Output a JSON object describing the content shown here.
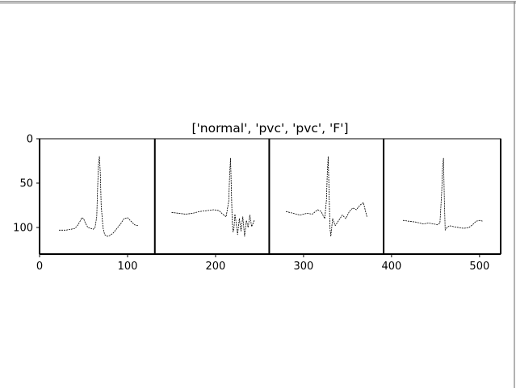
{
  "chart_data": {
    "type": "line",
    "title": "['normal', 'pvc', 'pvc', 'F']",
    "xlabel": "",
    "ylabel": "",
    "xlim": [
      0,
      524
    ],
    "ylim": [
      130,
      0
    ],
    "x_ticks": [
      0,
      100,
      200,
      300,
      400,
      500
    ],
    "y_ticks": [
      0,
      50,
      100
    ],
    "x_tick_labels": [
      "0",
      "100",
      "200",
      "300",
      "400",
      "500"
    ],
    "y_tick_labels": [
      "0",
      "50",
      "100"
    ],
    "grid": false,
    "panel_separators_x": [
      131,
      261,
      391
    ],
    "colors": {
      "trace": "#000000",
      "separator": "#000000",
      "background": "#ffffff"
    },
    "series": [
      {
        "x": [
          22,
          30,
          36,
          40,
          43,
          46,
          48,
          50,
          52,
          55,
          58,
          61,
          63,
          65,
          66,
          67,
          68,
          69,
          70,
          72,
          74,
          77,
          80,
          84,
          88,
          92,
          96,
          100,
          104,
          108,
          112
        ],
        "y": [
          103,
          103,
          102,
          101,
          98,
          93,
          89,
          90,
          95,
          100,
          101,
          102,
          100,
          88,
          55,
          28,
          20,
          38,
          75,
          100,
          108,
          110,
          109,
          106,
          101,
          96,
          90,
          89,
          93,
          97,
          98
        ]
      },
      {
        "x": [
          150,
          158,
          166,
          174,
          182,
          190,
          198,
          204,
          208,
          212,
          215,
          216,
          217,
          218,
          219,
          220,
          221,
          222,
          223,
          225,
          227,
          229,
          231,
          233,
          235,
          237,
          239,
          241,
          244
        ],
        "y": [
          83,
          84,
          85,
          84,
          82,
          81,
          80,
          81,
          85,
          88,
          70,
          40,
          22,
          60,
          95,
          105,
          100,
          85,
          92,
          108,
          90,
          104,
          88,
          110,
          92,
          100,
          86,
          99,
          92
        ]
      },
      {
        "x": [
          280,
          288,
          296,
          304,
          310,
          316,
          320,
          324,
          326,
          327,
          328,
          329,
          330,
          331,
          333,
          336,
          340,
          344,
          348,
          352,
          356,
          360,
          364,
          368,
          370,
          372
        ],
        "y": [
          82,
          84,
          86,
          84,
          85,
          80,
          82,
          90,
          70,
          40,
          20,
          60,
          100,
          110,
          90,
          98,
          92,
          86,
          90,
          82,
          78,
          80,
          75,
          72,
          80,
          88
        ]
      },
      {
        "x": [
          413,
          420,
          428,
          436,
          442,
          448,
          452,
          455,
          457,
          458,
          459,
          460,
          461,
          463,
          466,
          470,
          476,
          482,
          488,
          492,
          496,
          500,
          504
        ],
        "y": [
          92,
          93,
          94,
          96,
          95,
          96,
          97,
          95,
          60,
          32,
          22,
          70,
          103,
          100,
          98,
          99,
          100,
          101,
          100,
          97,
          93,
          92,
          93
        ]
      }
    ]
  }
}
